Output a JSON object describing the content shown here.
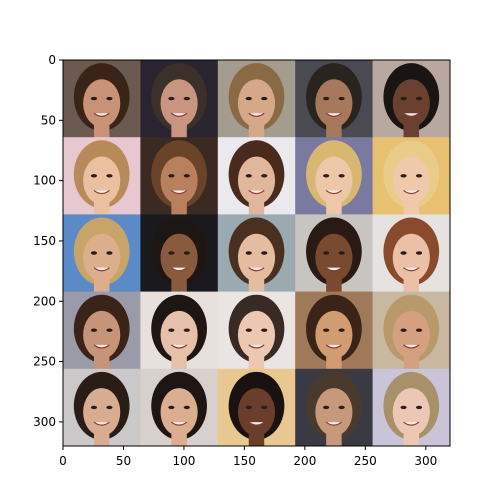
{
  "chart_data": {
    "type": "heatmap",
    "title": "",
    "xlabel": "",
    "ylabel": "",
    "xlim": [
      0,
      320
    ],
    "ylim": [
      320,
      0
    ],
    "xticks": [
      0,
      50,
      100,
      150,
      200,
      250,
      300
    ],
    "yticks": [
      0,
      50,
      100,
      150,
      200,
      250,
      300
    ],
    "grid_rows": 5,
    "grid_cols": 5,
    "tile_size": 64,
    "tiles": [
      {
        "row": 0,
        "col": 0,
        "bg": "#6b5a50",
        "hair": "#3a2418",
        "skin": "#c89276"
      },
      {
        "row": 0,
        "col": 1,
        "bg": "#2a2430",
        "hair": "#3b302a",
        "skin": "#c99480"
      },
      {
        "row": 0,
        "col": 2,
        "bg": "#a49c8e",
        "hair": "#8a6a44",
        "skin": "#d6a88a"
      },
      {
        "row": 0,
        "col": 3,
        "bg": "#4a4a52",
        "hair": "#2a2420",
        "skin": "#a8785c"
      },
      {
        "row": 0,
        "col": 4,
        "bg": "#b8a8a0",
        "hair": "#1a1412",
        "skin": "#6a4030"
      },
      {
        "row": 1,
        "col": 0,
        "bg": "#e8c8d0",
        "hair": "#b88a5a",
        "skin": "#eac0a0"
      },
      {
        "row": 1,
        "col": 1,
        "bg": "#3a2a22",
        "hair": "#6a4428",
        "skin": "#b8805c"
      },
      {
        "row": 1,
        "col": 2,
        "bg": "#eaeaee",
        "hair": "#4a2a1c",
        "skin": "#e0b69c"
      },
      {
        "row": 1,
        "col": 3,
        "bg": "#7a7aa0",
        "hair": "#d8b870",
        "skin": "#eec6a8"
      },
      {
        "row": 1,
        "col": 4,
        "bg": "#e8c070",
        "hair": "#e8cc88",
        "skin": "#f0c8aa"
      },
      {
        "row": 2,
        "col": 0,
        "bg": "#5a8ac8",
        "hair": "#c8a468",
        "skin": "#dcae8c"
      },
      {
        "row": 2,
        "col": 1,
        "bg": "#1a1a1e",
        "hair": "#1e1612",
        "skin": "#8a5a3e"
      },
      {
        "row": 2,
        "col": 2,
        "bg": "#9aaab0",
        "hair": "#4a3020",
        "skin": "#e4bca0"
      },
      {
        "row": 2,
        "col": 3,
        "bg": "#c8c4c0",
        "hair": "#2a1a14",
        "skin": "#7a4a30"
      },
      {
        "row": 2,
        "col": 4,
        "bg": "#e6e2e0",
        "hair": "#8a4a2c",
        "skin": "#ecc0a6"
      },
      {
        "row": 3,
        "col": 0,
        "bg": "#9a9aa8",
        "hair": "#3a2418",
        "skin": "#c89478"
      },
      {
        "row": 3,
        "col": 1,
        "bg": "#e8e0dc",
        "hair": "#1e1612",
        "skin": "#e6c0a8"
      },
      {
        "row": 3,
        "col": 2,
        "bg": "#eae4e2",
        "hair": "#3a2a24",
        "skin": "#ecc8b0"
      },
      {
        "row": 3,
        "col": 3,
        "bg": "#a0785a",
        "hair": "#3a2418",
        "skin": "#d09c70"
      },
      {
        "row": 3,
        "col": 4,
        "bg": "#c8b8a0",
        "hair": "#b89a6a",
        "skin": "#d4a080"
      },
      {
        "row": 4,
        "col": 0,
        "bg": "#cac8c8",
        "hair": "#2a1c16",
        "skin": "#d8ac90"
      },
      {
        "row": 4,
        "col": 1,
        "bg": "#d8d0cc",
        "hair": "#1e1612",
        "skin": "#dcae90"
      },
      {
        "row": 4,
        "col": 2,
        "bg": "#e8c890",
        "hair": "#1a1210",
        "skin": "#6a3e2a"
      },
      {
        "row": 4,
        "col": 3,
        "bg": "#3a3a44",
        "hair": "#4a3a2e",
        "skin": "#c8987a"
      },
      {
        "row": 4,
        "col": 4,
        "bg": "#cac4d8",
        "hair": "#a89068",
        "skin": "#ecc8b4"
      }
    ]
  }
}
